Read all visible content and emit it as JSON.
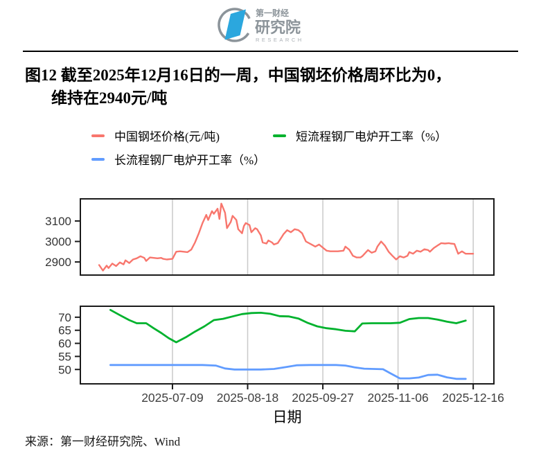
{
  "logo": {
    "brand_top": "第一财经",
    "brand_main": "研究院",
    "brand_sub": "RESEARCH"
  },
  "title": {
    "line1": "图12  截至2025年12月16日的一周，中国钢坯价格周环比为0，",
    "line2": "维持在2940元/吨"
  },
  "source": {
    "label": "来源：第一财经研究院、Wind"
  },
  "colors": {
    "price": "#F8766D",
    "eaf_short": "#00B22D",
    "eaf_long": "#619CFF",
    "grid": "#c9c9c9",
    "axis": "#1a1a1a",
    "logo_blue": "#2BA7DE",
    "logo_gray": "#8C949A"
  },
  "chart_data": {
    "type": "line",
    "x_axis": {
      "label": "日期",
      "domain": [
        "2025-05-21",
        "2025-12-27"
      ],
      "ticks": [
        "2025-07-09",
        "2025-08-18",
        "2025-09-27",
        "2025-11-06",
        "2025-12-16"
      ],
      "grid": "vertical-only"
    },
    "legend": [
      {
        "label": "中国钢坯价格(元/吨)",
        "color": "#F8766D"
      },
      {
        "label": "短流程钢厂电炉开工率（%）",
        "color": "#00B22D"
      },
      {
        "label": "长流程钢厂电炉开工率（%）",
        "color": "#619CFF"
      }
    ],
    "panels": [
      {
        "id": "price",
        "y_domain": [
          2836,
          3208
        ],
        "y_ticks": [
          2900,
          3000,
          3100
        ],
        "series": [
          {
            "id": "billet-price",
            "name": "中国钢坯价格(元/吨)",
            "color": "#F8766D",
            "width": 2.4,
            "points": [
              [
                "2025-05-31",
                2885
              ],
              [
                "2025-06-02",
                2858
              ],
              [
                "2025-06-04",
                2882
              ],
              [
                "2025-06-05",
                2870
              ],
              [
                "2025-06-07",
                2892
              ],
              [
                "2025-06-09",
                2880
              ],
              [
                "2025-06-11",
                2898
              ],
              [
                "2025-06-13",
                2888
              ],
              [
                "2025-06-14",
                2908
              ],
              [
                "2025-06-16",
                2895
              ],
              [
                "2025-06-18",
                2912
              ],
              [
                "2025-06-20",
                2918
              ],
              [
                "2025-06-22",
                2928
              ],
              [
                "2025-06-24",
                2920
              ],
              [
                "2025-06-25",
                2905
              ],
              [
                "2025-06-27",
                2922
              ],
              [
                "2025-06-29",
                2920
              ],
              [
                "2025-07-01",
                2918
              ],
              [
                "2025-07-03",
                2920
              ],
              [
                "2025-07-04",
                2915
              ],
              [
                "2025-07-06",
                2912
              ],
              [
                "2025-07-09",
                2915
              ],
              [
                "2025-07-11",
                2950
              ],
              [
                "2025-07-13",
                2952
              ],
              [
                "2025-07-15",
                2950
              ],
              [
                "2025-07-17",
                2948
              ],
              [
                "2025-07-19",
                2960
              ],
              [
                "2025-07-21",
                2995
              ],
              [
                "2025-07-23",
                3040
              ],
              [
                "2025-07-25",
                3090
              ],
              [
                "2025-07-27",
                3130
              ],
              [
                "2025-07-28",
                3105
              ],
              [
                "2025-07-30",
                3148
              ],
              [
                "2025-07-31",
                3135
              ],
              [
                "2025-08-02",
                3160
              ],
              [
                "2025-08-03",
                3110
              ],
              [
                "2025-08-04",
                3185
              ],
              [
                "2025-08-06",
                3140
              ],
              [
                "2025-08-07",
                3065
              ],
              [
                "2025-08-09",
                3095
              ],
              [
                "2025-08-10",
                3125
              ],
              [
                "2025-08-12",
                3105
              ],
              [
                "2025-08-13",
                3060
              ],
              [
                "2025-08-15",
                3040
              ],
              [
                "2025-08-16",
                3075
              ],
              [
                "2025-08-17",
                3090
              ],
              [
                "2025-08-19",
                3080
              ],
              [
                "2025-08-20",
                3045
              ],
              [
                "2025-08-22",
                3065
              ],
              [
                "2025-08-23",
                3060
              ],
              [
                "2025-08-25",
                3030
              ],
              [
                "2025-08-26",
                2995
              ],
              [
                "2025-08-28",
                2990
              ],
              [
                "2025-08-29",
                3005
              ],
              [
                "2025-08-31",
                2995
              ],
              [
                "2025-09-01",
                2985
              ],
              [
                "2025-09-03",
                2992
              ],
              [
                "2025-09-05",
                3020
              ],
              [
                "2025-09-06",
                3035
              ],
              [
                "2025-09-08",
                3055
              ],
              [
                "2025-09-10",
                3045
              ],
              [
                "2025-09-12",
                3060
              ],
              [
                "2025-09-14",
                3055
              ],
              [
                "2025-09-16",
                3040
              ],
              [
                "2025-09-18",
                3000
              ],
              [
                "2025-09-21",
                2985
              ],
              [
                "2025-09-23",
                2975
              ],
              [
                "2025-09-25",
                2985
              ],
              [
                "2025-09-27",
                2970
              ],
              [
                "2025-09-29",
                2955
              ],
              [
                "2025-10-01",
                2952
              ],
              [
                "2025-10-03",
                2952
              ],
              [
                "2025-10-05",
                2952
              ],
              [
                "2025-10-08",
                2955
              ],
              [
                "2025-10-09",
                2975
              ],
              [
                "2025-10-11",
                2960
              ],
              [
                "2025-10-13",
                2930
              ],
              [
                "2025-10-15",
                2922
              ],
              [
                "2025-10-17",
                2922
              ],
              [
                "2025-10-18",
                2928
              ],
              [
                "2025-10-21",
                2958
              ],
              [
                "2025-10-23",
                2945
              ],
              [
                "2025-10-25",
                2952
              ],
              [
                "2025-10-26",
                2975
              ],
              [
                "2025-10-28",
                3000
              ],
              [
                "2025-10-30",
                2980
              ],
              [
                "2025-11-01",
                2950
              ],
              [
                "2025-11-03",
                2930
              ],
              [
                "2025-11-05",
                2912
              ],
              [
                "2025-11-07",
                2928
              ],
              [
                "2025-11-09",
                2922
              ],
              [
                "2025-11-11",
                2930
              ],
              [
                "2025-11-12",
                2948
              ],
              [
                "2025-11-14",
                2940
              ],
              [
                "2025-11-16",
                2955
              ],
              [
                "2025-11-18",
                2950
              ],
              [
                "2025-11-20",
                2962
              ],
              [
                "2025-11-22",
                2958
              ],
              [
                "2025-11-23",
                2950
              ],
              [
                "2025-11-25",
                2968
              ],
              [
                "2025-11-27",
                2980
              ],
              [
                "2025-11-29",
                2992
              ],
              [
                "2025-12-01",
                2990
              ],
              [
                "2025-12-03",
                2992
              ],
              [
                "2025-12-04",
                2990
              ],
              [
                "2025-12-06",
                2988
              ],
              [
                "2025-12-08",
                2940
              ],
              [
                "2025-12-10",
                2952
              ],
              [
                "2025-12-12",
                2940
              ],
              [
                "2025-12-14",
                2940
              ],
              [
                "2025-12-16",
                2940
              ]
            ]
          }
        ]
      },
      {
        "id": "rates",
        "y_domain": [
          44.5,
          74.2
        ],
        "y_ticks": [
          50,
          55,
          60,
          65,
          70
        ],
        "series": [
          {
            "id": "eaf-short",
            "name": "短流程钢厂电炉开工率（%）",
            "color": "#00B22D",
            "width": 2.8,
            "points": [
              [
                "2025-06-06",
                72.8
              ],
              [
                "2025-06-11",
                70.8
              ],
              [
                "2025-06-16",
                68.9
              ],
              [
                "2025-06-20",
                67.7
              ],
              [
                "2025-06-25",
                67.7
              ],
              [
                "2025-06-29",
                65.8
              ],
              [
                "2025-07-03",
                64.0
              ],
              [
                "2025-07-07",
                62.0
              ],
              [
                "2025-07-11",
                60.4
              ],
              [
                "2025-07-16",
                62.3
              ],
              [
                "2025-07-21",
                64.5
              ],
              [
                "2025-07-26",
                66.5
              ],
              [
                "2025-07-31",
                68.9
              ],
              [
                "2025-08-05",
                69.4
              ],
              [
                "2025-08-10",
                70.3
              ],
              [
                "2025-08-15",
                71.2
              ],
              [
                "2025-08-20",
                71.6
              ],
              [
                "2025-08-25",
                71.7
              ],
              [
                "2025-08-30",
                71.3
              ],
              [
                "2025-09-04",
                70.4
              ],
              [
                "2025-09-09",
                70.3
              ],
              [
                "2025-09-14",
                69.5
              ],
              [
                "2025-09-19",
                67.8
              ],
              [
                "2025-09-24",
                66.5
              ],
              [
                "2025-09-29",
                65.8
              ],
              [
                "2025-10-04",
                65.4
              ],
              [
                "2025-10-09",
                64.8
              ],
              [
                "2025-10-14",
                64.6
              ],
              [
                "2025-10-18",
                67.6
              ],
              [
                "2025-10-23",
                67.7
              ],
              [
                "2025-10-28",
                67.7
              ],
              [
                "2025-11-02",
                67.7
              ],
              [
                "2025-11-07",
                67.9
              ],
              [
                "2025-11-12",
                69.3
              ],
              [
                "2025-11-17",
                69.7
              ],
              [
                "2025-11-22",
                69.7
              ],
              [
                "2025-11-27",
                69.1
              ],
              [
                "2025-12-02",
                68.3
              ],
              [
                "2025-12-07",
                67.7
              ],
              [
                "2025-12-12",
                68.7
              ]
            ]
          },
          {
            "id": "eaf-long",
            "name": "长流程钢厂电炉开工率（%）",
            "color": "#619CFF",
            "width": 2.8,
            "points": [
              [
                "2025-06-06",
                51.7
              ],
              [
                "2025-06-13",
                51.7
              ],
              [
                "2025-06-20",
                51.7
              ],
              [
                "2025-06-27",
                51.7
              ],
              [
                "2025-07-04",
                51.7
              ],
              [
                "2025-07-11",
                51.7
              ],
              [
                "2025-07-18",
                51.7
              ],
              [
                "2025-07-25",
                51.7
              ],
              [
                "2025-08-01",
                51.5
              ],
              [
                "2025-08-06",
                50.4
              ],
              [
                "2025-08-11",
                50.0
              ],
              [
                "2025-08-18",
                50.0
              ],
              [
                "2025-08-25",
                50.0
              ],
              [
                "2025-09-01",
                50.2
              ],
              [
                "2025-09-08",
                51.0
              ],
              [
                "2025-09-13",
                51.6
              ],
              [
                "2025-09-20",
                51.7
              ],
              [
                "2025-09-27",
                51.7
              ],
              [
                "2025-10-04",
                51.7
              ],
              [
                "2025-10-09",
                51.5
              ],
              [
                "2025-10-14",
                50.8
              ],
              [
                "2025-10-19",
                50.3
              ],
              [
                "2025-10-24",
                50.2
              ],
              [
                "2025-10-29",
                50.1
              ],
              [
                "2025-11-02",
                48.5
              ],
              [
                "2025-11-07",
                46.6
              ],
              [
                "2025-11-12",
                46.6
              ],
              [
                "2025-11-17",
                46.9
              ],
              [
                "2025-11-22",
                47.9
              ],
              [
                "2025-11-27",
                48.0
              ],
              [
                "2025-12-02",
                47.0
              ],
              [
                "2025-12-07",
                46.4
              ],
              [
                "2025-12-12",
                46.4
              ]
            ]
          }
        ]
      }
    ]
  }
}
